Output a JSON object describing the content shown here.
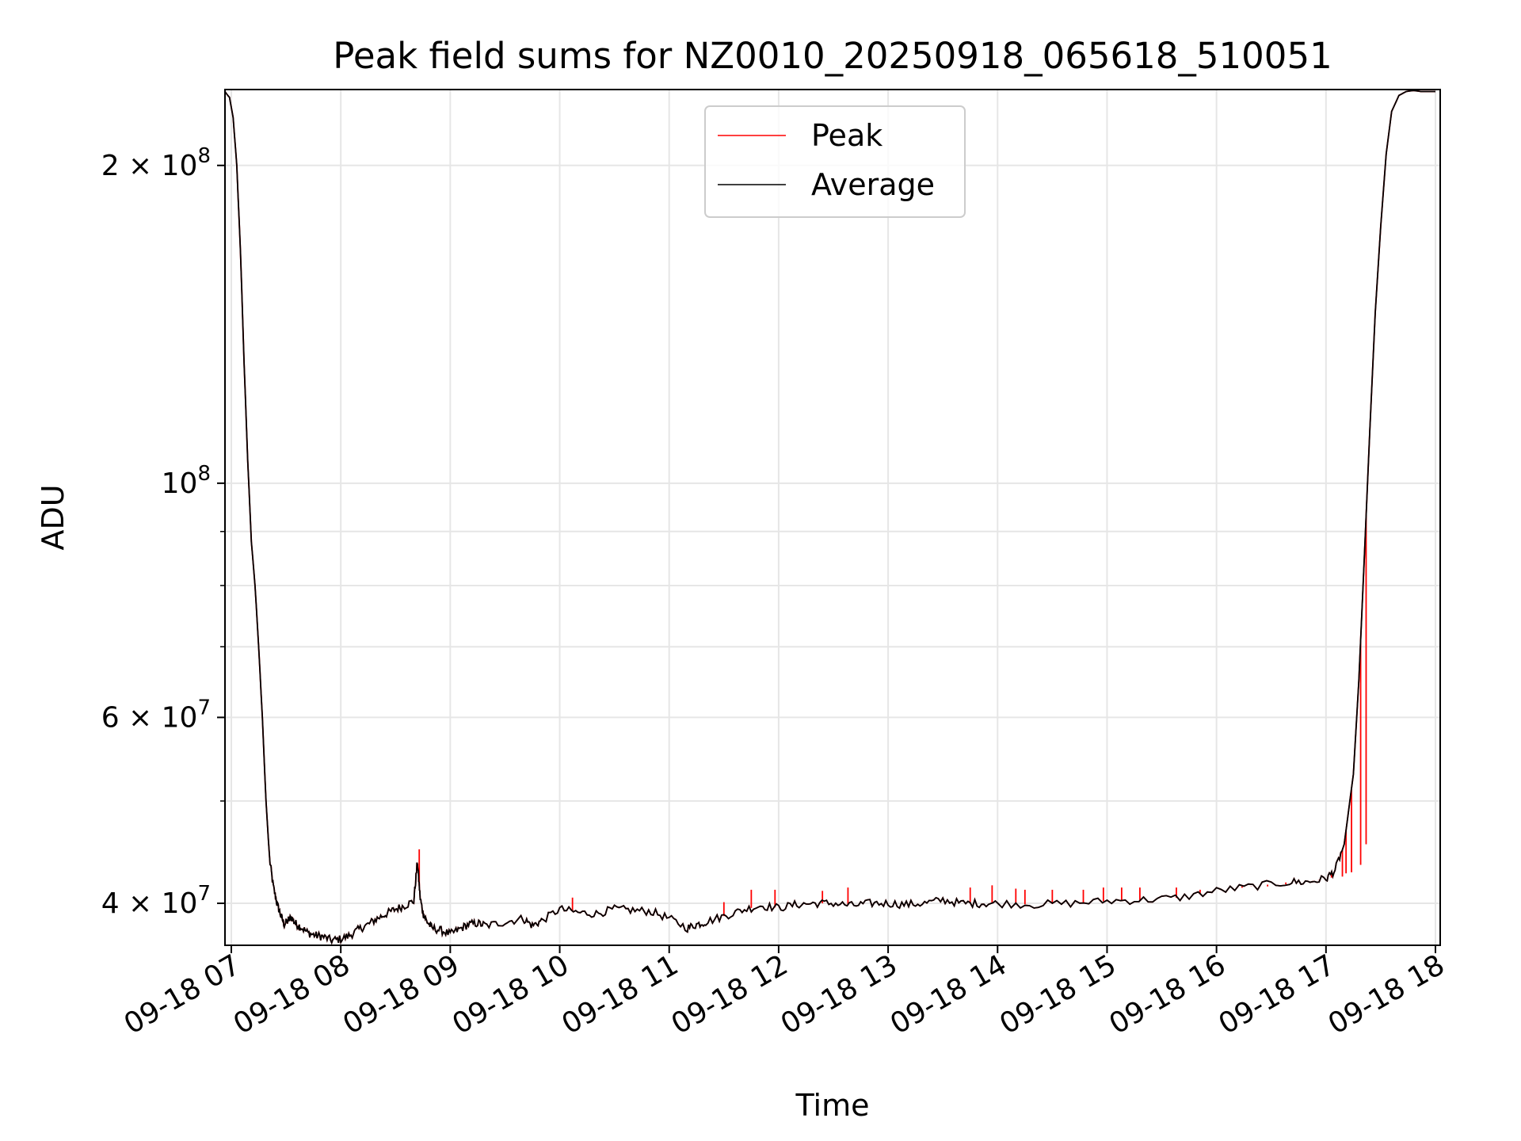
{
  "chart_data": {
    "type": "line",
    "title": "Peak field sums for NZ0010_20250918_065618_510051",
    "xlabel": "Time",
    "ylabel": "ADU",
    "x_axis_kind": "datetime",
    "y_scale": "log",
    "grid": true,
    "legend_placement": "top-center",
    "xlim": [
      "2025-09-18T06:56:18",
      "2025-09-18T18:00:00"
    ],
    "ylim": [
      36500000,
      236000000
    ],
    "x_ticks": [
      {
        "t": "2025-09-18T07:00",
        "label": "09-18 07"
      },
      {
        "t": "2025-09-18T08:00",
        "label": "09-18 08"
      },
      {
        "t": "2025-09-18T09:00",
        "label": "09-18 09"
      },
      {
        "t": "2025-09-18T10:00",
        "label": "09-18 10"
      },
      {
        "t": "2025-09-18T11:00",
        "label": "09-18 11"
      },
      {
        "t": "2025-09-18T12:00",
        "label": "09-18 12"
      },
      {
        "t": "2025-09-18T13:00",
        "label": "09-18 13"
      },
      {
        "t": "2025-09-18T14:00",
        "label": "09-18 14"
      },
      {
        "t": "2025-09-18T15:00",
        "label": "09-18 15"
      },
      {
        "t": "2025-09-18T16:00",
        "label": "09-18 16"
      },
      {
        "t": "2025-09-18T17:00",
        "label": "09-18 17"
      },
      {
        "t": "2025-09-18T18:00",
        "label": "09-18 18"
      }
    ],
    "y_major_ticks": [
      {
        "v": 40000000,
        "mantissa": "4",
        "exp": "7"
      },
      {
        "v": 60000000,
        "mantissa": "6",
        "exp": "7"
      },
      {
        "v": 100000000,
        "mantissa": "",
        "exp": "8"
      },
      {
        "v": 200000000,
        "mantissa": "2",
        "exp": "8"
      }
    ],
    "y_minor_ticks": [
      50000000,
      70000000,
      80000000,
      90000000
    ],
    "series": [
      {
        "name": "Average",
        "color": "#000000",
        "x": [
          "2025-09-18T06:56:18",
          "2025-09-18T06:59:00",
          "2025-09-18T07:01:00",
          "2025-09-18T07:03:00",
          "2025-09-18T07:05:00",
          "2025-09-18T07:07:00",
          "2025-09-18T07:09:00",
          "2025-09-18T07:11:00",
          "2025-09-18T07:13:00",
          "2025-09-18T07:15:00",
          "2025-09-18T07:17:00",
          "2025-09-18T07:19:00",
          "2025-09-18T07:21:00",
          "2025-09-18T07:23:00",
          "2025-09-18T07:25:00",
          "2025-09-18T07:27:00",
          "2025-09-18T07:29:00",
          "2025-09-18T07:31:00",
          "2025-09-18T07:33:00",
          "2025-09-18T07:35:00",
          "2025-09-18T07:38:00",
          "2025-09-18T07:42:00",
          "2025-09-18T07:46:00",
          "2025-09-18T07:50:00",
          "2025-09-18T07:55:00",
          "2025-09-18T08:00:00",
          "2025-09-18T08:05:00",
          "2025-09-18T08:10:00",
          "2025-09-18T08:15:00",
          "2025-09-18T08:20:00",
          "2025-09-18T08:25:00",
          "2025-09-18T08:30:00",
          "2025-09-18T08:35:00",
          "2025-09-18T08:40:00",
          "2025-09-18T08:42:00",
          "2025-09-18T08:43:30",
          "2025-09-18T08:45:00",
          "2025-09-18T08:47:00",
          "2025-09-18T08:50:00",
          "2025-09-18T08:55:00",
          "2025-09-18T09:00:00",
          "2025-09-18T09:05:00",
          "2025-09-18T09:10:00",
          "2025-09-18T09:15:00",
          "2025-09-18T09:20:00",
          "2025-09-18T09:30:00",
          "2025-09-18T09:40:00",
          "2025-09-18T09:45:00",
          "2025-09-18T09:50:00",
          "2025-09-18T10:00:00",
          "2025-09-18T10:10:00",
          "2025-09-18T10:20:00",
          "2025-09-18T10:30:00",
          "2025-09-18T10:40:00",
          "2025-09-18T10:50:00",
          "2025-09-18T11:00:00",
          "2025-09-18T11:10:00",
          "2025-09-18T11:15:00",
          "2025-09-18T11:20:00",
          "2025-09-18T11:30:00",
          "2025-09-18T11:40:00",
          "2025-09-18T11:50:00",
          "2025-09-18T12:00:00",
          "2025-09-18T12:10:00",
          "2025-09-18T12:20:00",
          "2025-09-18T12:30:00",
          "2025-09-18T12:40:00",
          "2025-09-18T12:50:00",
          "2025-09-18T13:00:00",
          "2025-09-18T13:10:00",
          "2025-09-18T13:20:00",
          "2025-09-18T13:30:00",
          "2025-09-18T13:40:00",
          "2025-09-18T13:50:00",
          "2025-09-18T14:00:00",
          "2025-09-18T14:20:00",
          "2025-09-18T14:40:00",
          "2025-09-18T15:00:00",
          "2025-09-18T15:20:00",
          "2025-09-18T15:40:00",
          "2025-09-18T16:00:00",
          "2025-09-18T16:20:00",
          "2025-09-18T16:40:00",
          "2025-09-18T16:50:00",
          "2025-09-18T17:00:00",
          "2025-09-18T17:05:00",
          "2025-09-18T17:10:00",
          "2025-09-18T17:15:00",
          "2025-09-18T17:18:00",
          "2025-09-18T17:21:00",
          "2025-09-18T17:24:00",
          "2025-09-18T17:27:00",
          "2025-09-18T17:30:00",
          "2025-09-18T17:33:00",
          "2025-09-18T17:36:00",
          "2025-09-18T17:40:00",
          "2025-09-18T17:44:00",
          "2025-09-18T17:48:00",
          "2025-09-18T17:52:00",
          "2025-09-18T17:56:00",
          "2025-09-18T18:00:00"
        ],
        "values": [
          235000000,
          232000000,
          222000000,
          200000000,
          166000000,
          130000000,
          105000000,
          88000000,
          80000000,
          70000000,
          60000000,
          50000000,
          44000000,
          41500000,
          40000000,
          39000000,
          38200000,
          38500000,
          38800000,
          38300000,
          38000000,
          37500000,
          37300000,
          37200000,
          36900000,
          37000000,
          37300000,
          37800000,
          38200000,
          38700000,
          39100000,
          39500000,
          39800000,
          40200000,
          43800000,
          40500000,
          39200000,
          38500000,
          37900000,
          37700000,
          37400000,
          37800000,
          38200000,
          38300000,
          38100000,
          38400000,
          38700000,
          38100000,
          38500000,
          39500000,
          39200000,
          39100000,
          39500000,
          39400000,
          39300000,
          38700000,
          37900000,
          38200000,
          38400000,
          38900000,
          39400000,
          39800000,
          39600000,
          39900000,
          40000000,
          40000000,
          39800000,
          40000000,
          40000000,
          39900000,
          40000000,
          40300000,
          40000000,
          40000000,
          40000000,
          39900000,
          40000000,
          40200000,
          40300000,
          40500000,
          41100000,
          41500000,
          41900000,
          41900000,
          42200000,
          43000000,
          45500000,
          53000000,
          65000000,
          85000000,
          112000000,
          145000000,
          175000000,
          205000000,
          225000000,
          233000000,
          235000000,
          235500000,
          235000000,
          235000000,
          235000000
        ]
      },
      {
        "name": "Peak",
        "color": "#ff0000",
        "spikes": [
          {
            "x": "2025-09-18T08:43:00",
            "y": 45000000
          },
          {
            "x": "2025-09-18T10:07:00",
            "y": 40500000
          },
          {
            "x": "2025-09-18T11:30:00",
            "y": 40100000
          },
          {
            "x": "2025-09-18T11:45:00",
            "y": 41200000
          },
          {
            "x": "2025-09-18T11:58:00",
            "y": 41200000
          },
          {
            "x": "2025-09-18T12:24:00",
            "y": 41100000
          },
          {
            "x": "2025-09-18T12:38:00",
            "y": 41400000
          },
          {
            "x": "2025-09-18T13:45:00",
            "y": 41400000
          },
          {
            "x": "2025-09-18T13:57:00",
            "y": 41600000
          },
          {
            "x": "2025-09-18T14:10:00",
            "y": 41300000
          },
          {
            "x": "2025-09-18T14:15:00",
            "y": 41200000
          },
          {
            "x": "2025-09-18T14:30:00",
            "y": 41200000
          },
          {
            "x": "2025-09-18T14:47:00",
            "y": 41200000
          },
          {
            "x": "2025-09-18T14:58:00",
            "y": 41400000
          },
          {
            "x": "2025-09-18T15:08:00",
            "y": 41400000
          },
          {
            "x": "2025-09-18T15:18:00",
            "y": 41400000
          },
          {
            "x": "2025-09-18T15:38:00",
            "y": 41400000
          },
          {
            "x": "2025-09-18T15:51:00",
            "y": 41200000
          },
          {
            "x": "2025-09-18T16:14:00",
            "y": 41500000
          },
          {
            "x": "2025-09-18T16:19:00",
            "y": 41500000
          },
          {
            "x": "2025-09-18T16:28:00",
            "y": 41500000
          },
          {
            "x": "2025-09-18T16:38:00",
            "y": 41700000
          },
          {
            "x": "2025-09-18T16:56:00",
            "y": 42100000
          },
          {
            "x": "2025-09-18T17:03:00",
            "y": 42300000
          },
          {
            "x": "2025-09-18T17:09:00",
            "y": 42400000
          },
          {
            "x": "2025-09-18T17:11:00",
            "y": 42700000
          },
          {
            "x": "2025-09-18T17:14:00",
            "y": 42800000
          },
          {
            "x": "2025-09-18T17:19:00",
            "y": 43500000
          },
          {
            "x": "2025-09-18T17:22:00",
            "y": 45500000
          }
        ]
      }
    ]
  }
}
